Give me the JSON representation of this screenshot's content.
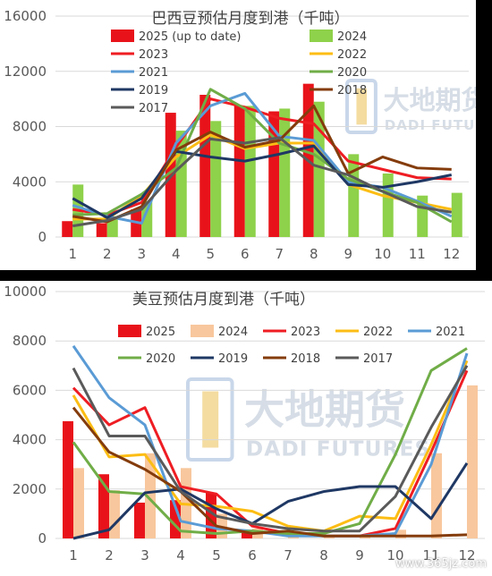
{
  "chart_data": [
    {
      "type": "bar",
      "title": "巴西豆预估月度到港（千吨）",
      "categories": [
        "1",
        "2",
        "3",
        "4",
        "5",
        "6",
        "7",
        "8",
        "9",
        "10",
        "11",
        "12"
      ],
      "ylim": [
        0,
        16000
      ],
      "yticks": [
        "0",
        "4000",
        "8000",
        "12000",
        "16000"
      ],
      "grid": true,
      "legend_position": "top",
      "bar_series": [
        {
          "name": "2025 (up to date)",
          "color": "#e8131a",
          "values": [
            1150,
            1000,
            2000,
            9000,
            10300,
            9500,
            9100,
            11100,
            null,
            null,
            null,
            null
          ]
        },
        {
          "name": "2024",
          "color": "#8ed14a",
          "values": [
            3800,
            1500,
            2600,
            7700,
            8400,
            9500,
            9300,
            9800,
            6000,
            4600,
            3000,
            3200
          ]
        }
      ],
      "line_series": [
        {
          "name": "2023",
          "color": "#ee1d23",
          "values": [
            2000,
            1600,
            2500,
            6500,
            10000,
            9400,
            8600,
            8200,
            5500,
            4900,
            4300,
            4200
          ]
        },
        {
          "name": "2022",
          "color": "#fcbd14",
          "values": [
            1300,
            1300,
            3000,
            5800,
            7400,
            6400,
            6800,
            6800,
            3800,
            3000,
            2500,
            2000
          ]
        },
        {
          "name": "2021",
          "color": "#5a9bd5",
          "values": [
            2300,
            1500,
            1000,
            6800,
            9500,
            10400,
            7300,
            7000,
            4000,
            3600,
            2600,
            1500
          ]
        },
        {
          "name": "2020",
          "color": "#70ad47",
          "values": [
            1600,
            1700,
            3100,
            5000,
            10700,
            9300,
            6800,
            6000,
            4200,
            3300,
            2500,
            1100
          ]
        },
        {
          "name": "2019",
          "color": "#1f3864",
          "values": [
            2800,
            1400,
            2800,
            6200,
            5800,
            5500,
            6000,
            6600,
            3800,
            3600,
            4000,
            4500
          ]
        },
        {
          "name": "2018",
          "color": "#843c0c",
          "values": [
            1500,
            1100,
            2200,
            6300,
            7600,
            6500,
            7000,
            9500,
            4600,
            5800,
            5000,
            4900
          ]
        },
        {
          "name": "2017",
          "color": "#5a5a5a",
          "values": [
            800,
            1200,
            2000,
            4800,
            7100,
            6800,
            7200,
            5200,
            4500,
            3300,
            2200,
            1800
          ]
        }
      ],
      "watermark": {
        "cn": "大地期货",
        "en": "DADI FUTURES"
      }
    },
    {
      "type": "bar",
      "title": "美豆预估月度到港（千吨）",
      "categories": [
        "1",
        "2",
        "3",
        "4",
        "5",
        "6",
        "7",
        "8",
        "9",
        "10",
        "11",
        "12"
      ],
      "ylim": [
        0,
        10000
      ],
      "yticks": [
        "0",
        "2000",
        "4000",
        "6000",
        "8000",
        "10000"
      ],
      "grid": true,
      "legend_position": "top",
      "bar_series": [
        {
          "name": "2025",
          "color": "#e8131a",
          "values": [
            4750,
            2600,
            1450,
            1550,
            1850,
            250,
            null,
            null,
            null,
            null,
            null,
            null
          ]
        },
        {
          "name": "2024",
          "color": "#f8c79d",
          "values": [
            2850,
            1950,
            3450,
            2850,
            1000,
            400,
            100,
            50,
            50,
            350,
            3450,
            6200
          ]
        }
      ],
      "line_series": [
        {
          "name": "2023",
          "color": "#ee1d23",
          "values": [
            6100,
            4600,
            5300,
            2100,
            1800,
            500,
            200,
            100,
            100,
            400,
            3500,
            6800
          ]
        },
        {
          "name": "2022",
          "color": "#fcbd14",
          "values": [
            5800,
            3300,
            3400,
            1400,
            1300,
            1100,
            500,
            300,
            900,
            800,
            3800,
            7200
          ]
        },
        {
          "name": "2021",
          "color": "#5a9bd5",
          "values": [
            7800,
            5700,
            4600,
            700,
            400,
            300,
            100,
            100,
            100,
            200,
            3000,
            7500
          ]
        },
        {
          "name": "2020",
          "color": "#70ad47",
          "values": [
            3900,
            1900,
            1800,
            300,
            200,
            300,
            200,
            200,
            600,
            3400,
            6800,
            7700
          ]
        },
        {
          "name": "2019",
          "color": "#1f3864",
          "values": [
            0,
            350,
            1850,
            2000,
            1200,
            600,
            1500,
            1900,
            2100,
            2100,
            800,
            3050
          ]
        },
        {
          "name": "2018",
          "color": "#843c0c",
          "values": [
            5300,
            3500,
            2800,
            1900,
            500,
            200,
            300,
            100,
            100,
            100,
            100,
            150
          ]
        },
        {
          "name": "2017",
          "color": "#5a5a5a",
          "values": [
            6900,
            4150,
            4150,
            1900,
            900,
            600,
            400,
            300,
            300,
            1700,
            4500,
            7000
          ]
        }
      ],
      "watermark": {
        "cn": "大地期货",
        "en": "DADI FUTURES"
      }
    }
  ],
  "site_watermark": "www.365jz.com"
}
